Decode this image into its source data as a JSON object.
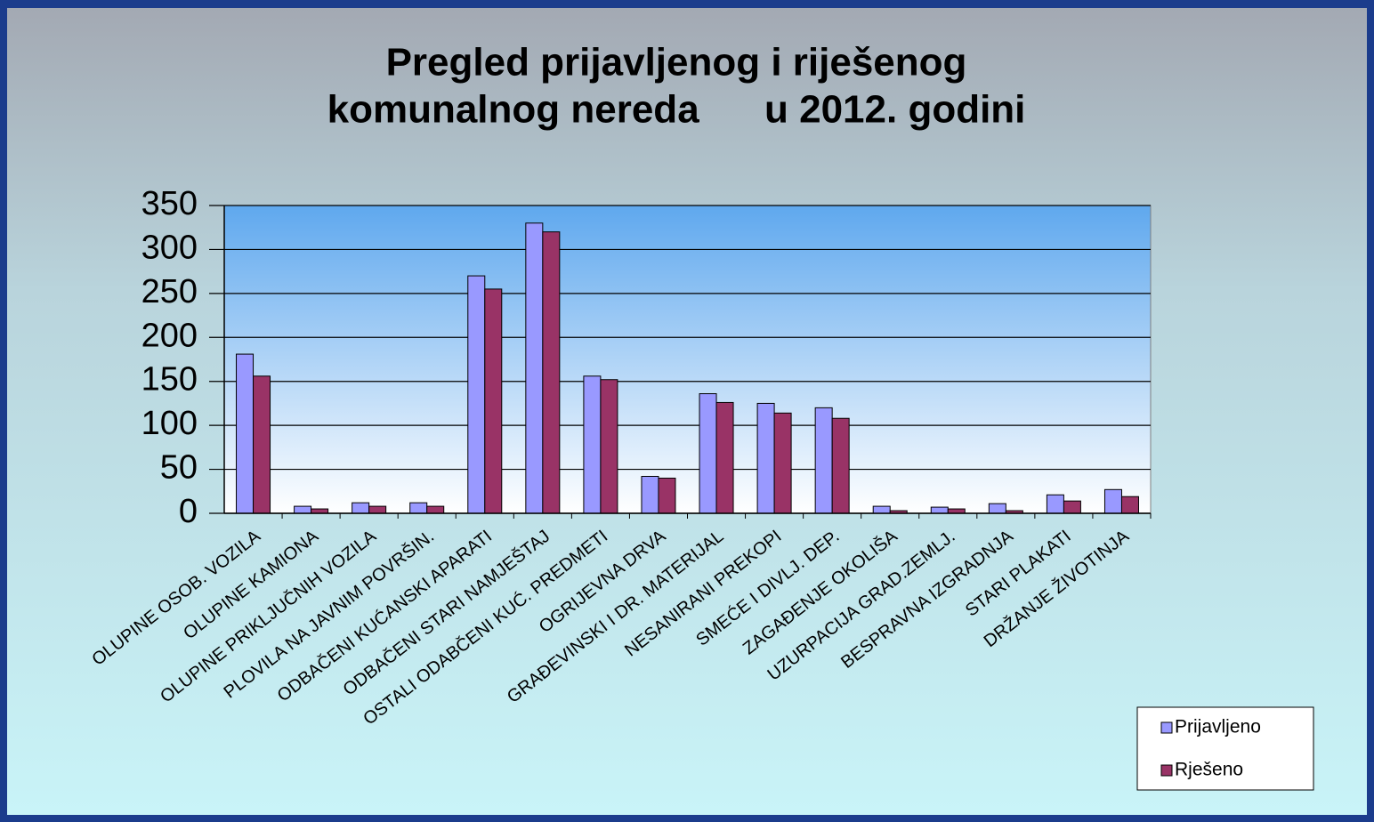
{
  "chart_data": {
    "type": "bar",
    "title": [
      "Pregled prijavljenog i riješenog",
      "komunalnog nereda      u 2012. godini"
    ],
    "categories": [
      "OLUPINE OSOB. VOZILA",
      "OLUPINE KAMIONA",
      "OLUPINE PRIKLJUČNIH VOZILA",
      "PLOVILA NA JAVNIM POVRŠIN.",
      "ODBAČENI KUĆANSKI APARATI",
      "ODBAČENI STARI NAMJEŠTAJ",
      "OSTALI ODABČENI KUĆ. PREDMETI",
      "OGRIJEVNA DRVA",
      "GRAĐEVINSKI I DR. MATERIJAL",
      "NESANIRANI PREKOPI",
      "SMEĆE I DIVLJ. DEP.",
      "ZAGAĐENJE OKOLIŠA",
      "UZURPACIJA GRAD.ZEMLJ.",
      "BESPRAVNA IZGRADNJA",
      "STARI PLAKATI",
      "DRŽANJE ŽIVOTINJA"
    ],
    "series": [
      {
        "name": "Prijavljeno",
        "color": "#9999ff",
        "values": [
          181,
          8,
          12,
          12,
          270,
          330,
          156,
          42,
          136,
          125,
          120,
          8,
          7,
          11,
          21,
          27
        ]
      },
      {
        "name": "Rješeno",
        "color": "#993366",
        "values": [
          156,
          5,
          8,
          8,
          255,
          320,
          152,
          40,
          126,
          114,
          108,
          3,
          5,
          3,
          14,
          19
        ]
      }
    ],
    "ylim": [
      0,
      350
    ],
    "yticks": [
      0,
      50,
      100,
      150,
      200,
      250,
      300,
      350
    ],
    "grid": true,
    "legend": "bottom-right"
  }
}
